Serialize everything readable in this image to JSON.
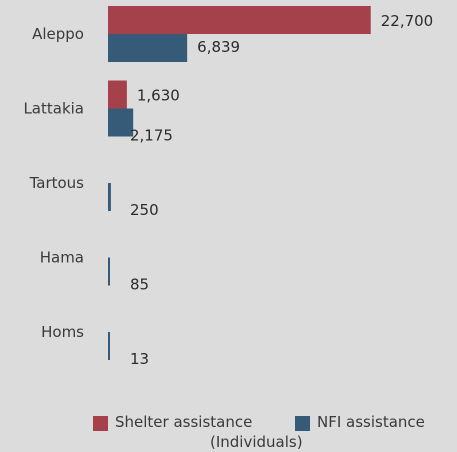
{
  "chart_data": {
    "type": "bar",
    "orientation": "horizontal",
    "categories": [
      "Aleppo",
      "Lattakia",
      "Tartous",
      "Hama",
      "Homs"
    ],
    "series": [
      {
        "name": "Shelter assistance (Individuals)",
        "color": "#a5414b",
        "values": [
          22700,
          1630,
          0,
          0,
          0
        ],
        "labels": [
          "22,700",
          "1,630",
          "",
          "",
          ""
        ]
      },
      {
        "name": "NFI assistance",
        "color": "#355b78",
        "values": [
          6839,
          2175,
          250,
          85,
          13
        ],
        "labels": [
          "6,839",
          "2,175",
          "250",
          "85",
          "13"
        ]
      }
    ],
    "xlim": [
      0,
      23500
    ],
    "grid": false,
    "legend_position": "bottom"
  },
  "legend": {
    "shelter_line1": "Shelter assistance",
    "shelter_line2": "(Individuals)",
    "nfi": "NFI assistance"
  }
}
